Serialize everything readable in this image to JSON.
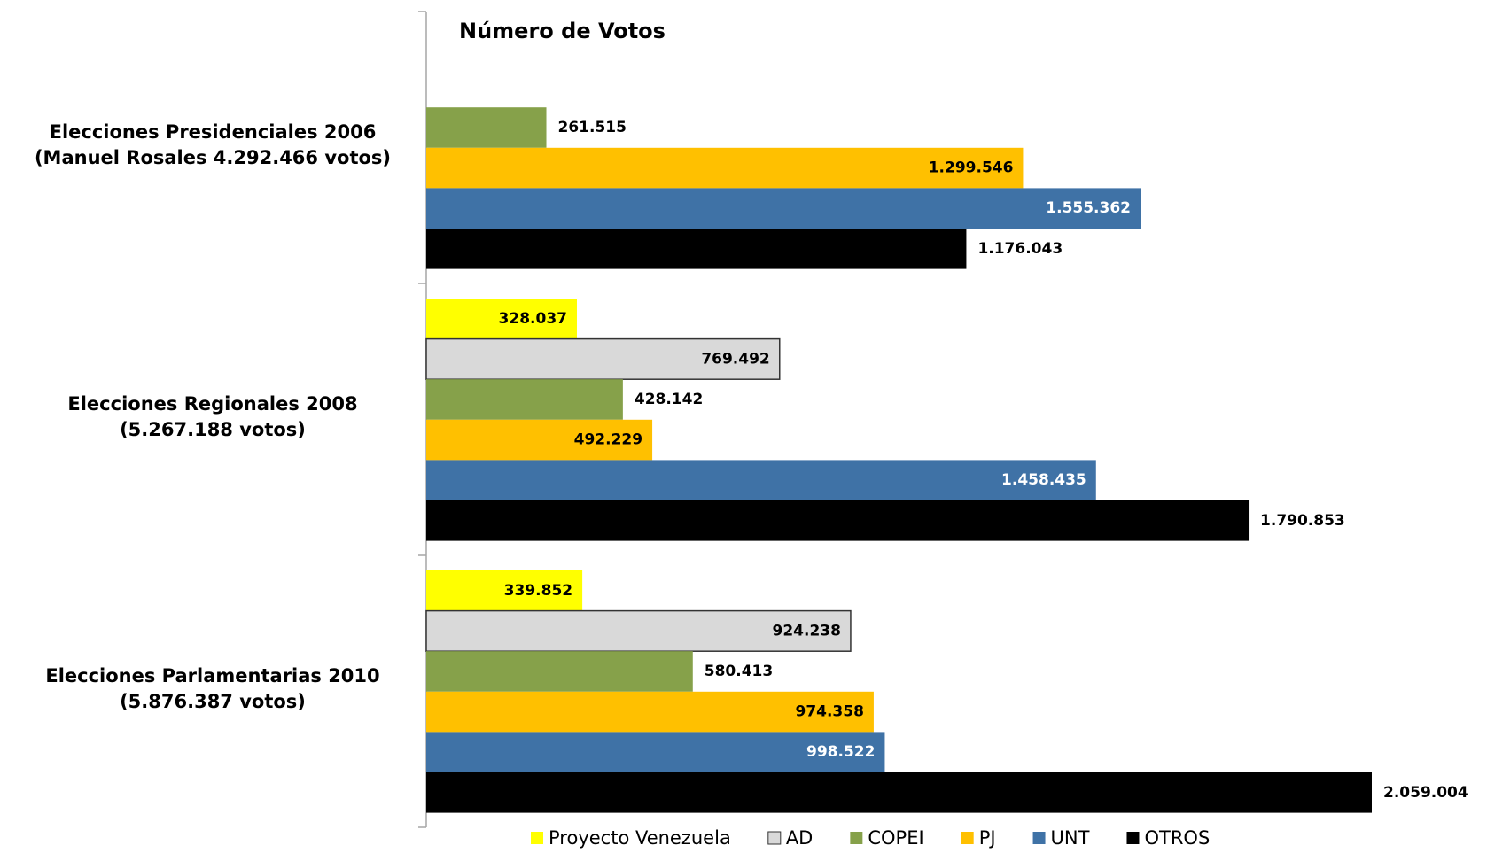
{
  "chart_data": {
    "type": "hbar",
    "title": "Número de Votos",
    "categories": [
      [
        "Elecciones Presidenciales 2006",
        "(Manuel Rosales 4.292.466 votos)"
      ],
      [
        "Elecciones Regionales 2008",
        "(5.267.188 votos)"
      ],
      [
        "Elecciones Parlamentarias 2010",
        "(5.876.387 votos)"
      ]
    ],
    "series": [
      {
        "name": "Proyecto Venezuela",
        "color": "#ffff00",
        "label_position": "inside",
        "values": [
          null,
          328037,
          339852
        ],
        "value_labels": [
          null,
          "328.037",
          "339.852"
        ]
      },
      {
        "name": "AD",
        "color": "#d9d9d9",
        "label_position": "inside",
        "values": [
          null,
          769492,
          924238
        ],
        "value_labels": [
          null,
          "769.492",
          "924.238"
        ]
      },
      {
        "name": "COPEI",
        "color": "#86a14a",
        "label_position": "outside",
        "values": [
          261515,
          428142,
          580413
        ],
        "value_labels": [
          "261.515",
          "428.142",
          "580.413"
        ]
      },
      {
        "name": "PJ",
        "color": "#ffc000",
        "label_position": "inside",
        "values": [
          1299546,
          492229,
          974358
        ],
        "value_labels": [
          "1.299.546",
          "492.229",
          "974.358"
        ]
      },
      {
        "name": "UNT",
        "color": "#3f72a6",
        "label_position": "inside",
        "values": [
          1555362,
          1458435,
          998522
        ],
        "value_labels": [
          "1.555.362",
          "1.458.435",
          "998.522"
        ]
      },
      {
        "name": "OTROS",
        "color": "#000000",
        "label_position": "outside",
        "values": [
          1176043,
          1790853,
          2059004
        ],
        "value_labels": [
          "1.176.043",
          "1.790.853",
          "2.059.004"
        ]
      }
    ],
    "legend": "bottom"
  }
}
